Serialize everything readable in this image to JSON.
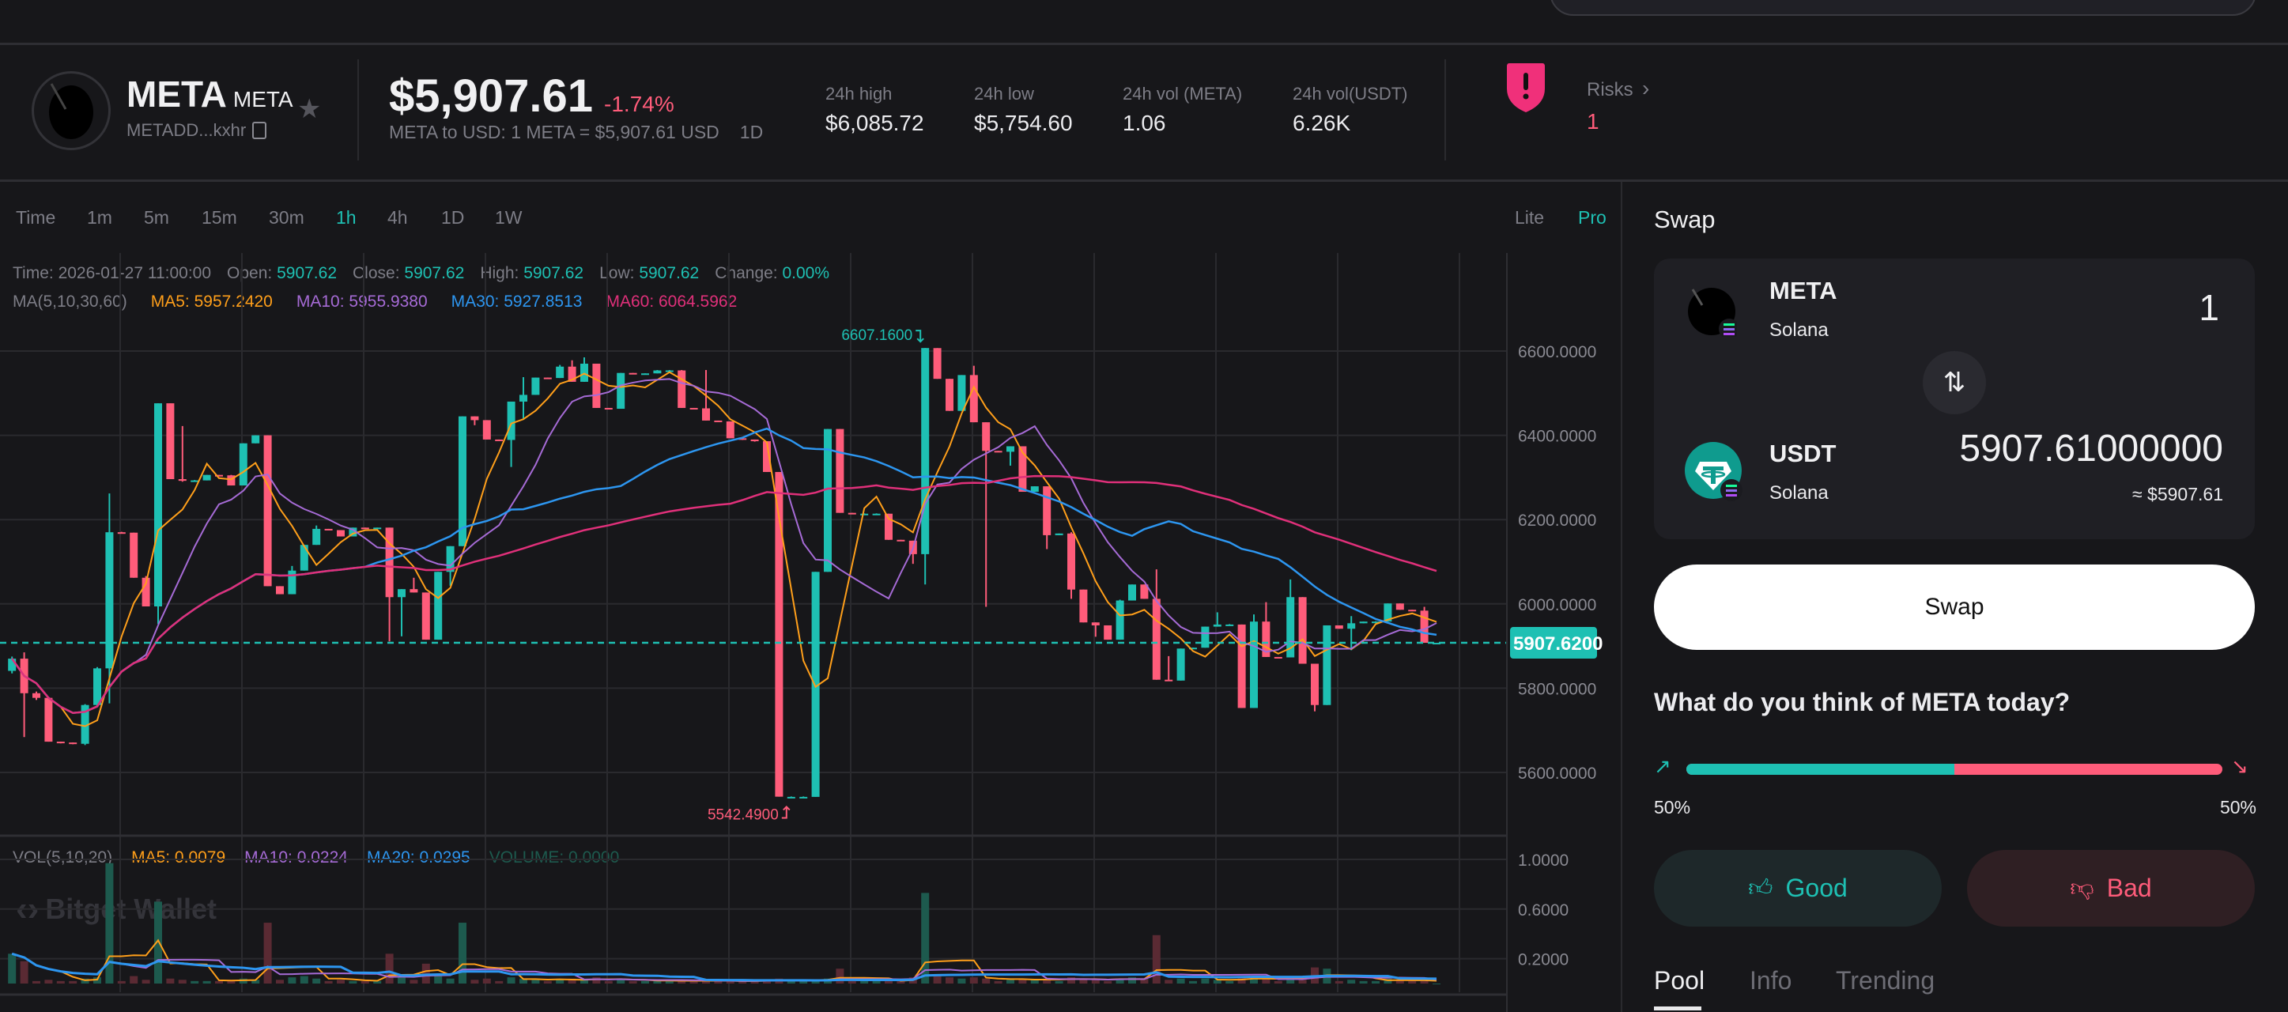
{
  "token": {
    "name": "META",
    "symbol": "META",
    "address_short": "METADD...kxhr",
    "price": "$5,907.61",
    "change": "-1.74%",
    "conversion": "META to USD: 1 META = $5,907.61 USD",
    "period": "1D"
  },
  "stats": [
    {
      "label": "24h high",
      "value": "$6,085.72"
    },
    {
      "label": "24h low",
      "value": "$5,754.60"
    },
    {
      "label": "24h vol (META)",
      "value": "1.06"
    },
    {
      "label": "24h vol(USDT)",
      "value": "6.26K"
    }
  ],
  "risks": {
    "label": "Risks",
    "count": "1"
  },
  "timeframes": [
    "Time",
    "1m",
    "5m",
    "15m",
    "30m",
    "1h",
    "4h",
    "1D",
    "1W"
  ],
  "active_timeframe": "1h",
  "modes": {
    "lite": "Lite",
    "pro": "Pro",
    "active": "Pro"
  },
  "info_line": [
    {
      "label": "Time:",
      "value": "2026-01-27 11:00:00"
    },
    {
      "label": "Open:",
      "value": "5907.62"
    },
    {
      "label": "Close:",
      "value": "5907.62"
    },
    {
      "label": "High:",
      "value": "5907.62"
    },
    {
      "label": "Low:",
      "value": "5907.62"
    },
    {
      "label": "Change:",
      "value": "0.00%"
    }
  ],
  "ma_line": {
    "label": "MA(5,10,30,60)",
    "items": [
      {
        "text": "MA5: 5957.2420",
        "color": "#ff9f1a"
      },
      {
        "text": "MA10: 5955.9380",
        "color": "#a66bd6"
      },
      {
        "text": "MA30: 5927.8513",
        "color": "#2d96f0"
      },
      {
        "text": "MA60: 6064.5962",
        "color": "#e0307a"
      }
    ]
  },
  "vol_line": {
    "label": "VOL(5,10,20)",
    "items": [
      {
        "text": "MA5: 0.0079",
        "color": "#ff9f1a"
      },
      {
        "text": "MA10: 0.0224",
        "color": "#a66bd6"
      },
      {
        "text": "MA20: 0.0295",
        "color": "#2d96f0"
      },
      {
        "text": "VOLUME: 0.0000",
        "color": "#1d5a4e"
      }
    ]
  },
  "watermark": "Bitget Wallet",
  "colors": {
    "up": "#1ec0b3",
    "down": "#ff5c7a",
    "background": "#17171a",
    "grid": "#2a2a2e"
  },
  "chart_data": {
    "type": "candlestick",
    "interval": "1h",
    "price_axis": {
      "ticks": [
        "6600.0000",
        "6400.0000",
        "6200.0000",
        "6000.0000",
        "5800.0000",
        "5600.0000"
      ],
      "range": [
        5480,
        6720
      ]
    },
    "volume_axis": {
      "ticks": [
        "1.0000",
        "0.6000",
        "0.2000"
      ],
      "range": [
        0,
        1.1
      ]
    },
    "last_price_label": "5907.6200",
    "last_price": 5907.62,
    "max_label": "6607.1600",
    "min_label": "5542.4900",
    "ma_periods": [
      5,
      10,
      30,
      60
    ],
    "vol_ma_periods": [
      5,
      10,
      20
    ],
    "grid": true,
    "candles_ohlc": [
      [
        5841,
        5875,
        5835,
        5870
      ],
      [
        5870,
        5885,
        5684,
        5788
      ],
      [
        5788,
        5792,
        5772,
        5777
      ],
      [
        5777,
        5777,
        5673,
        5673
      ],
      [
        5673,
        5673,
        5669,
        5671
      ],
      [
        5671,
        5671,
        5667,
        5668
      ],
      [
        5668,
        5762,
        5665,
        5760
      ],
      [
        5760,
        5850,
        5758,
        5847
      ],
      [
        5847,
        6262,
        5764,
        6170
      ],
      [
        6170,
        6171,
        6168,
        6169
      ],
      [
        6169,
        6169,
        6062,
        6062
      ],
      [
        6062,
        6066,
        5994,
        5994
      ],
      [
        5994,
        6476,
        5952,
        6476
      ],
      [
        6476,
        6476,
        6296,
        6296
      ],
      [
        6296,
        6422,
        6290,
        6292
      ],
      [
        6292,
        6294,
        6291,
        6293
      ],
      [
        6293,
        6306,
        6293,
        6306
      ],
      [
        6306,
        6306,
        6304,
        6305
      ],
      [
        6305,
        6306,
        6281,
        6281
      ],
      [
        6281,
        6381,
        6281,
        6381
      ],
      [
        6381,
        6400,
        6381,
        6400
      ],
      [
        6400,
        6400,
        6042,
        6042
      ],
      [
        6042,
        6042,
        6023,
        6023
      ],
      [
        6023,
        6090,
        6023,
        6079
      ],
      [
        6079,
        6140,
        6079,
        6140
      ],
      [
        6140,
        6186,
        6140,
        6178
      ],
      [
        6178,
        6178,
        6175,
        6175
      ],
      [
        6175,
        6175,
        6160,
        6160
      ],
      [
        6160,
        6181,
        6160,
        6181
      ],
      [
        6181,
        6181,
        6180,
        6180
      ],
      [
        6180,
        6181,
        6180,
        6181
      ],
      [
        6181,
        6181,
        5911,
        6016
      ],
      [
        6016,
        6035,
        5923,
        6035
      ],
      [
        6035,
        6062,
        6027,
        6027
      ],
      [
        6027,
        6027,
        5915,
        5915
      ],
      [
        5915,
        6076,
        5915,
        6076
      ],
      [
        6076,
        6137,
        6043,
        6137
      ],
      [
        6137,
        6445,
        6137,
        6445
      ],
      [
        6445,
        6445,
        6424,
        6436
      ],
      [
        6436,
        6436,
        6390,
        6390
      ],
      [
        6390,
        6390,
        6388,
        6389
      ],
      [
        6389,
        6480,
        6325,
        6480
      ],
      [
        6480,
        6538,
        6440,
        6496
      ],
      [
        6496,
        6537,
        6496,
        6537
      ],
      [
        6537,
        6537,
        6535,
        6536
      ],
      [
        6536,
        6567,
        6536,
        6563
      ],
      [
        6563,
        6578,
        6527,
        6527
      ],
      [
        6527,
        6585,
        6527,
        6570
      ],
      [
        6570,
        6570,
        6465,
        6465
      ],
      [
        6465,
        6465,
        6462,
        6463
      ],
      [
        6463,
        6548,
        6463,
        6548
      ],
      [
        6548,
        6548,
        6546,
        6546
      ],
      [
        6546,
        6547,
        6546,
        6547
      ],
      [
        6547,
        6555,
        6547,
        6554
      ],
      [
        6554,
        6555,
        6554,
        6554
      ],
      [
        6554,
        6555,
        6465,
        6465
      ],
      [
        6465,
        6465,
        6463,
        6464
      ],
      [
        6464,
        6555,
        6435,
        6435
      ],
      [
        6435,
        6435,
        6432,
        6433
      ],
      [
        6433,
        6433,
        6393,
        6393
      ],
      [
        6393,
        6393,
        6389,
        6390
      ],
      [
        6390,
        6390,
        6385,
        6386
      ],
      [
        6386,
        6386,
        6313,
        6313
      ],
      [
        6313,
        6313,
        5542.49,
        5542.49
      ],
      [
        5542,
        5543,
        5541,
        5542
      ],
      [
        5542,
        5543,
        5541,
        5542
      ],
      [
        5542,
        6076,
        5542,
        6076
      ],
      [
        6076,
        6415,
        6076,
        6415
      ],
      [
        6415,
        6415,
        6216,
        6216
      ],
      [
        6216,
        6216,
        6214,
        6214
      ],
      [
        6214,
        6215,
        6214,
        6214
      ],
      [
        6214,
        6215,
        6214,
        6214
      ],
      [
        6214,
        6214,
        6152,
        6152
      ],
      [
        6152,
        6152,
        6150,
        6150
      ],
      [
        6150,
        6150,
        6095,
        6118
      ],
      [
        6118,
        6607.16,
        6046,
        6607.16
      ],
      [
        6607,
        6607,
        6534,
        6534
      ],
      [
        6534,
        6534,
        6458,
        6458
      ],
      [
        6458,
        6543,
        6458,
        6543
      ],
      [
        6543,
        6565,
        6431,
        6431
      ],
      [
        6431,
        6431,
        5993,
        6363
      ],
      [
        6363,
        6363,
        6360,
        6361
      ],
      [
        6361,
        6374,
        6328,
        6374
      ],
      [
        6374,
        6374,
        6266,
        6266
      ],
      [
        6266,
        6279,
        6266,
        6279
      ],
      [
        6279,
        6279,
        6130,
        6163
      ],
      [
        6163,
        6167,
        6163,
        6167
      ],
      [
        6167,
        6170,
        6012,
        6034
      ],
      [
        6034,
        6034,
        5956,
        5956
      ],
      [
        5956,
        5956,
        5922,
        5949
      ],
      [
        5949,
        5949,
        5915,
        5915
      ],
      [
        5915,
        6010,
        5915,
        6008
      ],
      [
        6008,
        6046,
        6008,
        6046
      ],
      [
        6046,
        6046,
        6012,
        6012
      ],
      [
        6012,
        6082,
        5820,
        5820
      ],
      [
        5820,
        5876,
        5818,
        5818
      ],
      [
        5818,
        5894,
        5818,
        5894
      ],
      [
        5894,
        5896,
        5894,
        5896
      ],
      [
        5896,
        5946,
        5896,
        5946
      ],
      [
        5946,
        5980,
        5946,
        5951
      ],
      [
        5951,
        5952,
        5950,
        5951
      ],
      [
        5951,
        5951,
        5753,
        5753
      ],
      [
        5753,
        5975,
        5753,
        5958
      ],
      [
        5958,
        6004,
        5874,
        5874
      ],
      [
        5874,
        5874,
        5872,
        5873
      ],
      [
        5873,
        6058,
        5873,
        6016
      ],
      [
        6016,
        6016,
        5858,
        5858
      ],
      [
        5858,
        5858,
        5745,
        5760
      ],
      [
        5760,
        5949,
        5760,
        5949
      ],
      [
        5949,
        5949,
        5941,
        5941
      ],
      [
        5941,
        5971,
        5890,
        5954
      ],
      [
        5954,
        5958,
        5954,
        5958
      ],
      [
        5958,
        5959,
        5958,
        5958
      ],
      [
        5958,
        6001,
        5958,
        6001
      ],
      [
        6001,
        6001,
        5986,
        5986
      ],
      [
        5986,
        5986,
        5984,
        5984
      ],
      [
        5984,
        5993,
        5907.62,
        5907.62
      ],
      [
        5907.62,
        5907.62,
        5907.62,
        5907.62
      ]
    ],
    "volumes": [
      0.24,
      0.18,
      0.02,
      0.03,
      0.02,
      0.02,
      0.04,
      0.05,
      0.97,
      0.02,
      0.06,
      0.03,
      0.66,
      0.04,
      0.03,
      0.02,
      0.02,
      0.02,
      0.03,
      0.04,
      0.03,
      0.49,
      0.03,
      0.05,
      0.06,
      0.04,
      0.02,
      0.03,
      0.02,
      0.02,
      0.02,
      0.24,
      0.05,
      0.03,
      0.16,
      0.06,
      0.04,
      0.49,
      0.03,
      0.04,
      0.02,
      0.05,
      0.04,
      0.03,
      0.02,
      0.03,
      0.04,
      0.03,
      0.05,
      0.02,
      0.04,
      0.02,
      0.02,
      0.02,
      0.02,
      0.03,
      0.02,
      0.02,
      0.02,
      0.02,
      0.02,
      0.02,
      0.03,
      0.04,
      0.02,
      0.02,
      0.03,
      0.04,
      0.12,
      0.02,
      0.02,
      0.02,
      0.03,
      0.02,
      0.05,
      0.73,
      0.06,
      0.05,
      0.04,
      0.05,
      0.04,
      0.02,
      0.03,
      0.04,
      0.03,
      0.04,
      0.02,
      0.05,
      0.04,
      0.03,
      0.02,
      0.04,
      0.05,
      0.04,
      0.39,
      0.03,
      0.04,
      0.02,
      0.04,
      0.03,
      0.02,
      0.05,
      0.06,
      0.04,
      0.02,
      0.04,
      0.03,
      0.13,
      0.12,
      0.02,
      0.03,
      0.02,
      0.02,
      0.04,
      0.03,
      0.02,
      0.02,
      0.0
    ]
  },
  "swap": {
    "title": "Swap",
    "from": {
      "symbol": "META",
      "chain": "Solana",
      "amount": "1"
    },
    "to": {
      "symbol": "USDT",
      "chain": "Solana",
      "amount": "5907.61000000",
      "usd_value": "≈ $5907.61"
    },
    "button": "Swap"
  },
  "sentiment": {
    "question": "What do you think of META today?",
    "bullish_percent": "50%",
    "bearish_percent": "50%",
    "bullish_fraction": 0.5,
    "good": "Good",
    "bad": "Bad"
  },
  "tabs": [
    {
      "label": "Pool",
      "active": true
    },
    {
      "label": "Info",
      "active": false
    },
    {
      "label": "Trending",
      "active": false
    }
  ]
}
